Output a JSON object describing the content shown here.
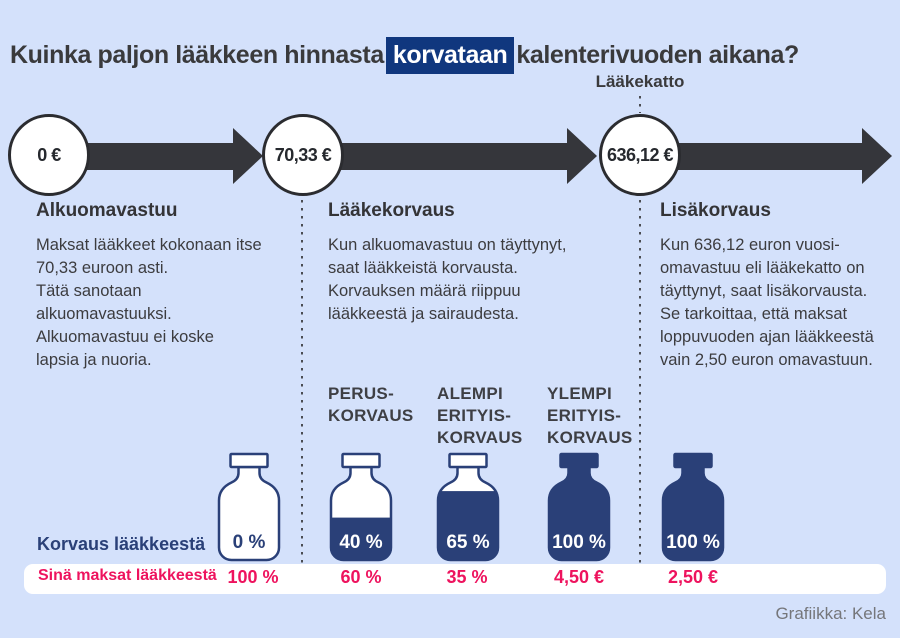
{
  "title": {
    "pre": "Kuinka paljon lääkkeen hinnasta",
    "highlight": "korvataan",
    "post": "kalenterivuoden aikana?"
  },
  "timeline": {
    "cap_label": "Lääkekatto",
    "milestones": [
      "0 €",
      "70,33 €",
      "636,12 €"
    ]
  },
  "sections": [
    {
      "heading": "Alkuomavastuu",
      "body": "Maksat lääkkeet kokonaan itse\n70,33 euroon asti.\nTätä sanotaan\nalkuomavastuuksi.\nAlkuomavastuu ei koske\nlapsia ja nuoria."
    },
    {
      "heading": "Lääkekorvaus",
      "body": "Kun alkuomavastuu on täyttynyt,\nsaat lääkkeistä korvausta.\nKorvauksen määrä riippuu\nlääkkeestä ja sairaudesta."
    },
    {
      "heading": "Lisäkorvaus",
      "body": "Kun 636,12 euron vuosi-\nomavastuu eli lääkekatto on\ntäyttynyt, saat lisäkorvausta.\nSe tarkoittaa, että maksat\nloppuvuoden ajan lääkkeestä\nvain 2,50 euron omavastuun."
    }
  ],
  "categories": [
    {
      "label": "",
      "fill_pct": 0,
      "korvaus": "0 %",
      "maksat": "100 %"
    },
    {
      "label": "PERUS-\nKORVAUS",
      "fill_pct": 40,
      "korvaus": "40 %",
      "maksat": "60 %"
    },
    {
      "label": "ALEMPI\nERITYIS-\nKORVAUS",
      "fill_pct": 65,
      "korvaus": "65 %",
      "maksat": "35 %"
    },
    {
      "label": "YLEMPI\nERITYIS-\nKORVAUS",
      "fill_pct": 100,
      "korvaus": "100 %",
      "maksat": "4,50 €"
    },
    {
      "label": "",
      "fill_pct": 100,
      "korvaus": "100 %",
      "maksat": "2,50 €"
    }
  ],
  "rows": {
    "korvaus_label": "Korvaus lääkkeestä",
    "maksat_label": "Sinä maksat lääkkeestä"
  },
  "credit": "Grafiikka: Kela",
  "colors": {
    "background": "#d4e1fb",
    "navy": "#2a4078",
    "title_highlight": "#10377e",
    "arrow": "#35363b",
    "pink": "#ee135e",
    "text": "#3a3a3c",
    "band": "#ffffff"
  }
}
